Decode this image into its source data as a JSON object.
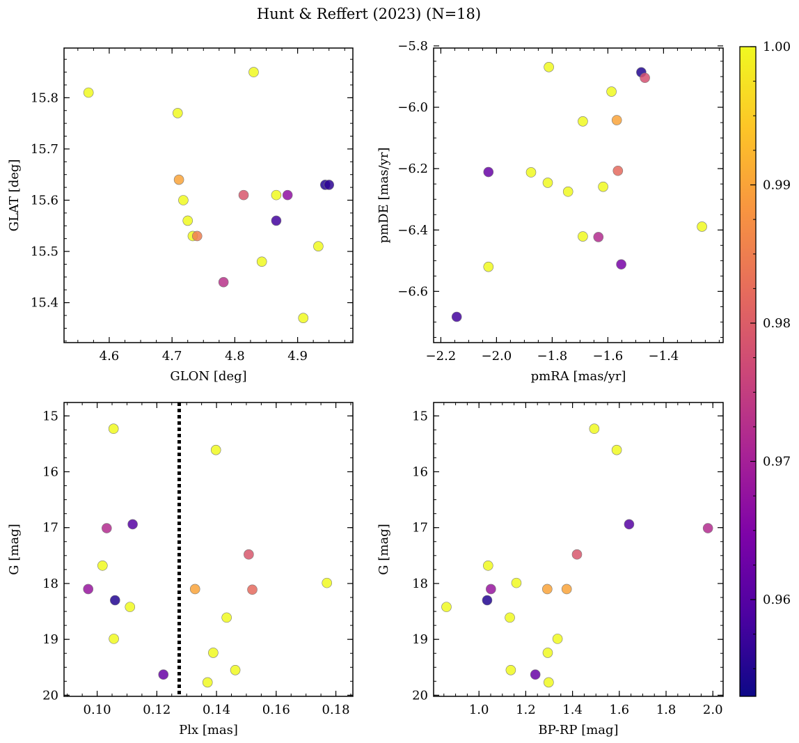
{
  "title": "Hunt & Reffert (2023) (N=18)",
  "colormap": "plasma",
  "colorbar": {
    "range": [
      0.953,
      1.0
    ],
    "ticks": [
      0.96,
      0.97,
      0.98,
      0.99,
      1.0
    ],
    "tick_labels": [
      "0.96",
      "0.97",
      "0.98",
      "0.99",
      "1.00"
    ]
  },
  "chart_data": [
    {
      "type": "scatter",
      "xlabel": "GLON [deg]",
      "ylabel": "GLAT [deg]",
      "xlim": [
        4.528,
        4.988
      ],
      "ylim": [
        15.322,
        15.897
      ],
      "xticks": [
        4.6,
        4.7,
        4.8,
        4.9
      ],
      "xtick_labels": [
        "4.6",
        "4.7",
        "4.8",
        "4.9"
      ],
      "yticks": [
        15.4,
        15.5,
        15.6,
        15.7,
        15.8
      ],
      "ytick_labels": [
        "15.4",
        "15.5",
        "15.6",
        "15.7",
        "15.8"
      ],
      "invert_y": false,
      "points": [
        {
          "x": 4.567,
          "y": 15.81,
          "c": 1.0
        },
        {
          "x": 4.709,
          "y": 15.77,
          "c": 1.0
        },
        {
          "x": 4.83,
          "y": 15.85,
          "c": 1.0
        },
        {
          "x": 4.711,
          "y": 15.64,
          "c": 0.99
        },
        {
          "x": 4.718,
          "y": 15.6,
          "c": 1.0
        },
        {
          "x": 4.725,
          "y": 15.56,
          "c": 1.0
        },
        {
          "x": 4.733,
          "y": 15.53,
          "c": 1.0
        },
        {
          "x": 4.74,
          "y": 15.53,
          "c": 0.985
        },
        {
          "x": 4.782,
          "y": 15.44,
          "c": 0.973
        },
        {
          "x": 4.814,
          "y": 15.61,
          "c": 0.979
        },
        {
          "x": 4.866,
          "y": 15.61,
          "c": 1.0
        },
        {
          "x": 4.884,
          "y": 15.61,
          "c": 0.967
        },
        {
          "x": 4.866,
          "y": 15.56,
          "c": 0.958
        },
        {
          "x": 4.843,
          "y": 15.48,
          "c": 1.0
        },
        {
          "x": 4.933,
          "y": 15.51,
          "c": 1.0
        },
        {
          "x": 4.909,
          "y": 15.37,
          "c": 1.0
        },
        {
          "x": 4.944,
          "y": 15.63,
          "c": 0.955
        },
        {
          "x": 4.95,
          "y": 15.63,
          "c": 0.956
        }
      ]
    },
    {
      "type": "scatter",
      "xlabel": "pmRA [mas/yr]",
      "ylabel": "pmDE [mas/yr]",
      "xlim": [
        -2.226,
        -1.186
      ],
      "ylim": [
        -6.767,
        -5.807
      ],
      "xticks": [
        -2.2,
        -2.0,
        -1.8,
        -1.6,
        -1.4
      ],
      "xtick_labels": [
        "−2.2",
        "−2.0",
        "−1.8",
        "−1.6",
        "−1.4"
      ],
      "yticks": [
        -6.6,
        -6.4,
        -6.2,
        -6.0,
        -5.8
      ],
      "ytick_labels": [
        "−6.6",
        "−6.4",
        "−6.2",
        "−6.0",
        "−5.8"
      ],
      "invert_y": false,
      "points": [
        {
          "x": -2.143,
          "y": -6.683,
          "c": 0.958
        },
        {
          "x": -2.029,
          "y": -6.211,
          "c": 0.962
        },
        {
          "x": -2.029,
          "y": -6.52,
          "c": 1.0
        },
        {
          "x": -1.876,
          "y": -6.212,
          "c": 1.0
        },
        {
          "x": -1.816,
          "y": -6.246,
          "c": 1.0
        },
        {
          "x": -1.812,
          "y": -5.869,
          "c": 1.0
        },
        {
          "x": -1.743,
          "y": -6.275,
          "c": 1.0
        },
        {
          "x": -1.69,
          "y": -6.046,
          "c": 1.0
        },
        {
          "x": -1.69,
          "y": -6.421,
          "c": 1.0
        },
        {
          "x": -1.634,
          "y": -6.423,
          "c": 0.972
        },
        {
          "x": -1.617,
          "y": -6.259,
          "c": 1.0
        },
        {
          "x": -1.587,
          "y": -5.949,
          "c": 1.0
        },
        {
          "x": -1.568,
          "y": -6.042,
          "c": 0.99
        },
        {
          "x": -1.564,
          "y": -6.207,
          "c": 0.982
        },
        {
          "x": -1.552,
          "y": -6.512,
          "c": 0.964
        },
        {
          "x": -1.48,
          "y": -5.886,
          "c": 0.955
        },
        {
          "x": -1.467,
          "y": -5.904,
          "c": 0.978
        },
        {
          "x": -1.262,
          "y": -6.389,
          "c": 1.0
        }
      ]
    },
    {
      "type": "scatter",
      "xlabel": "Plx [mas]",
      "ylabel": "G [mag]",
      "xlim": [
        0.0889,
        0.1857
      ],
      "ylim": [
        20.02,
        14.76
      ],
      "xticks": [
        0.1,
        0.12,
        0.14,
        0.16,
        0.18
      ],
      "xtick_labels": [
        "0.10",
        "0.12",
        "0.14",
        "0.16",
        "0.18"
      ],
      "yticks": [
        15,
        16,
        17,
        18,
        19,
        20
      ],
      "ytick_labels": [
        "15",
        "16",
        "17",
        "18",
        "19",
        "20"
      ],
      "invert_y": true,
      "vline": {
        "x": 0.1275,
        "style": "dotted"
      },
      "points": [
        {
          "x": 0.1055,
          "y": 15.23,
          "c": 1.0
        },
        {
          "x": 0.1398,
          "y": 15.61,
          "c": 1.0
        },
        {
          "x": 0.1032,
          "y": 17.01,
          "c": 0.972
        },
        {
          "x": 0.1119,
          "y": 16.94,
          "c": 0.96
        },
        {
          "x": 0.1018,
          "y": 17.68,
          "c": 1.0
        },
        {
          "x": 0.1508,
          "y": 17.48,
          "c": 0.979
        },
        {
          "x": 0.097,
          "y": 18.1,
          "c": 0.968
        },
        {
          "x": 0.106,
          "y": 18.3,
          "c": 0.955
        },
        {
          "x": 0.111,
          "y": 18.42,
          "c": 1.0
        },
        {
          "x": 0.1328,
          "y": 18.1,
          "c": 0.99
        },
        {
          "x": 0.152,
          "y": 18.11,
          "c": 0.982
        },
        {
          "x": 0.177,
          "y": 17.99,
          "c": 1.0
        },
        {
          "x": 0.1434,
          "y": 18.61,
          "c": 1.0
        },
        {
          "x": 0.1056,
          "y": 18.99,
          "c": 1.0
        },
        {
          "x": 0.1389,
          "y": 19.24,
          "c": 1.0
        },
        {
          "x": 0.1463,
          "y": 19.55,
          "c": 1.0
        },
        {
          "x": 0.1222,
          "y": 19.63,
          "c": 0.962
        },
        {
          "x": 0.137,
          "y": 19.77,
          "c": 1.0
        }
      ]
    },
    {
      "type": "scatter",
      "xlabel": "BP-RP [mag]",
      "ylabel": "G [mag]",
      "xlim": [
        0.806,
        2.044
      ],
      "ylim": [
        20.02,
        14.76
      ],
      "xticks": [
        1.0,
        1.2,
        1.4,
        1.6,
        1.8,
        2.0
      ],
      "xtick_labels": [
        "1.0",
        "1.2",
        "1.4",
        "1.6",
        "1.8",
        "2.0"
      ],
      "yticks": [
        15,
        16,
        17,
        18,
        19,
        20
      ],
      "ytick_labels": [
        "15",
        "16",
        "17",
        "18",
        "19",
        "20"
      ],
      "invert_y": true,
      "points": [
        {
          "x": 1.493,
          "y": 15.23,
          "c": 1.0
        },
        {
          "x": 1.589,
          "y": 15.61,
          "c": 1.0
        },
        {
          "x": 1.642,
          "y": 16.94,
          "c": 0.96
        },
        {
          "x": 1.979,
          "y": 17.01,
          "c": 0.972
        },
        {
          "x": 1.039,
          "y": 17.68,
          "c": 1.0
        },
        {
          "x": 1.419,
          "y": 17.48,
          "c": 0.979
        },
        {
          "x": 1.16,
          "y": 17.99,
          "c": 1.0
        },
        {
          "x": 1.051,
          "y": 18.1,
          "c": 0.968
        },
        {
          "x": 1.292,
          "y": 18.1,
          "c": 0.99
        },
        {
          "x": 1.375,
          "y": 18.1,
          "c": 0.99
        },
        {
          "x": 1.035,
          "y": 18.3,
          "c": 0.955
        },
        {
          "x": 0.861,
          "y": 18.42,
          "c": 1.0
        },
        {
          "x": 1.132,
          "y": 18.61,
          "c": 1.0
        },
        {
          "x": 1.336,
          "y": 18.99,
          "c": 1.0
        },
        {
          "x": 1.294,
          "y": 19.24,
          "c": 1.0
        },
        {
          "x": 1.136,
          "y": 19.55,
          "c": 1.0
        },
        {
          "x": 1.241,
          "y": 19.63,
          "c": 0.962
        },
        {
          "x": 1.298,
          "y": 19.77,
          "c": 1.0
        }
      ]
    }
  ]
}
